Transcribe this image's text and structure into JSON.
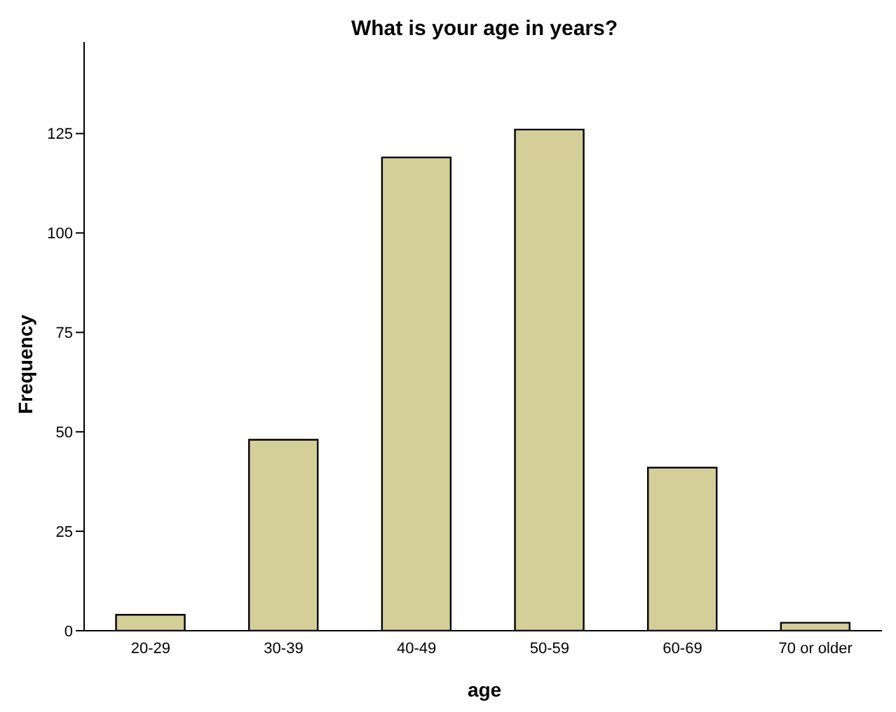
{
  "chart_data": {
    "type": "bar",
    "title": "What is your age in years?",
    "xlabel": "age",
    "ylabel": "Frequency",
    "categories": [
      "20-29",
      "30-39",
      "40-49",
      "50-59",
      "60-69",
      "70 or older"
    ],
    "values": [
      4,
      48,
      119,
      126,
      41,
      2
    ],
    "color": "#d4ce98",
    "ylim": [
      0,
      148
    ],
    "yticks": [
      0,
      25,
      50,
      75,
      100,
      125
    ],
    "grid": false,
    "legend": false
  }
}
